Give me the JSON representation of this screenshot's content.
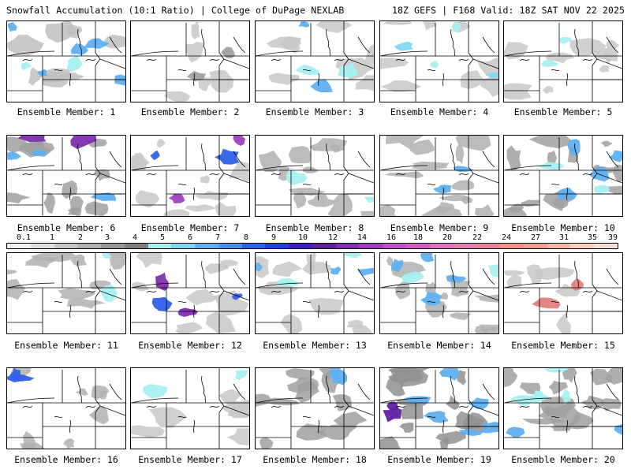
{
  "header": {
    "left": "Snowfall Accumulation (10:1 Ratio) | College of DuPage NEXLAB",
    "right": "18Z GEFS | F168 Valid: 18Z SAT NOV 22 2025"
  },
  "panels": [
    {
      "label": "Ensemble Member: 1"
    },
    {
      "label": "Ensemble Member: 2"
    },
    {
      "label": "Ensemble Member: 3"
    },
    {
      "label": "Ensemble Member: 4"
    },
    {
      "label": "Ensemble Member: 5"
    },
    {
      "label": "Ensemble Member: 6"
    },
    {
      "label": "Ensemble Member: 7"
    },
    {
      "label": "Ensemble Member: 8"
    },
    {
      "label": "Ensemble Member: 9"
    },
    {
      "label": "Ensemble Member: 10"
    },
    {
      "label": "Ensemble Member: 11"
    },
    {
      "label": "Ensemble Member: 12"
    },
    {
      "label": "Ensemble Member: 13"
    },
    {
      "label": "Ensemble Member: 14"
    },
    {
      "label": "Ensemble Member: 15"
    },
    {
      "label": "Ensemble Member: 16"
    },
    {
      "label": "Ensemble Member: 17"
    },
    {
      "label": "Ensemble Member: 18"
    },
    {
      "label": "Ensemble Member: 19"
    },
    {
      "label": "Ensemble Member: 20"
    }
  ],
  "colorbar": {
    "labels": [
      "0.1",
      "1",
      "2",
      "3",
      "4",
      "5",
      "6",
      "7",
      "8",
      "9",
      "10",
      "12",
      "14",
      "16",
      "18",
      "20",
      "22",
      "24",
      "27",
      "31",
      "35",
      "39"
    ],
    "colors": [
      "#f0f0f0",
      "#e0e0e0",
      "#c8c8c8",
      "#b0b0b0",
      "#989898",
      "#808080",
      "#a8f0f0",
      "#80d8f0",
      "#60b0f0",
      "#5090f0",
      "#3060e8",
      "#2040e0",
      "#4020c0",
      "#6020a0",
      "#8030b0",
      "#a040c0",
      "#c050c8",
      "#d060c0",
      "#e070c0",
      "#e080b0",
      "#e88098",
      "#f09088",
      "#f0a090",
      "#f4b8a8",
      "#f8d0c0",
      "#fce0d8"
    ]
  },
  "panel_fills": {
    "1": [
      [
        "#c0c0c0",
        0.2
      ],
      [
        "#60b0f0",
        0.12
      ],
      [
        "#a8f0f0",
        0.05
      ]
    ],
    "2": [
      [
        "#c8c8c8",
        0.12
      ],
      [
        "#a0a0a0",
        0.06
      ]
    ],
    "3": [
      [
        "#c8c8c8",
        0.18
      ],
      [
        "#a8f0f0",
        0.04
      ],
      [
        "#60b0f0",
        0.04
      ]
    ],
    "4": [
      [
        "#c8c8c8",
        0.2
      ],
      [
        "#a8f0f0",
        0.05
      ],
      [
        "#80d8f0",
        0.03
      ]
    ],
    "5": [
      [
        "#c8c8c8",
        0.22
      ],
      [
        "#a8f0f0",
        0.06
      ]
    ],
    "6": [
      [
        "#a0a0a0",
        0.3
      ],
      [
        "#60b0f0",
        0.08
      ],
      [
        "#8030b0",
        0.03
      ]
    ],
    "7": [
      [
        "#c8c8c8",
        0.25
      ],
      [
        "#3060e8",
        0.05
      ],
      [
        "#a040c0",
        0.04
      ]
    ],
    "8": [
      [
        "#b0b0b0",
        0.28
      ],
      [
        "#a8f0f0",
        0.02
      ]
    ],
    "9": [
      [
        "#b0b0b0",
        0.32
      ],
      [
        "#60b0f0",
        0.04
      ]
    ],
    "10": [
      [
        "#a0a0a0",
        0.35
      ],
      [
        "#60b0f0",
        0.1
      ],
      [
        "#a8f0f0",
        0.06
      ]
    ],
    "11": [
      [
        "#b0b0b0",
        0.22
      ],
      [
        "#a8f0f0",
        0.04
      ]
    ],
    "12": [
      [
        "#c8c8c8",
        0.2
      ],
      [
        "#3060e8",
        0.05
      ],
      [
        "#8030b0",
        0.02
      ]
    ],
    "13": [
      [
        "#c8c8c8",
        0.22
      ],
      [
        "#60b0f0",
        0.08
      ],
      [
        "#a8f0f0",
        0.04
      ]
    ],
    "14": [
      [
        "#b0b0b0",
        0.3
      ],
      [
        "#60b0f0",
        0.1
      ],
      [
        "#a8f0f0",
        0.05
      ]
    ],
    "15": [
      [
        "#c8c8c8",
        0.15
      ],
      [
        "#e08080",
        0.03
      ]
    ],
    "16": [
      [
        "#b0b0b0",
        0.2
      ],
      [
        "#3060e8",
        0.03
      ]
    ],
    "17": [
      [
        "#c8c8c8",
        0.16
      ],
      [
        "#a8f0f0",
        0.02
      ]
    ],
    "18": [
      [
        "#a0a0a0",
        0.3
      ],
      [
        "#60b0f0",
        0.05
      ]
    ],
    "19": [
      [
        "#909090",
        0.35
      ],
      [
        "#60b0f0",
        0.14
      ],
      [
        "#6020a0",
        0.02
      ]
    ],
    "20": [
      [
        "#a0a0a0",
        0.35
      ],
      [
        "#a8f0f0",
        0.1
      ],
      [
        "#60b0f0",
        0.05
      ]
    ]
  }
}
